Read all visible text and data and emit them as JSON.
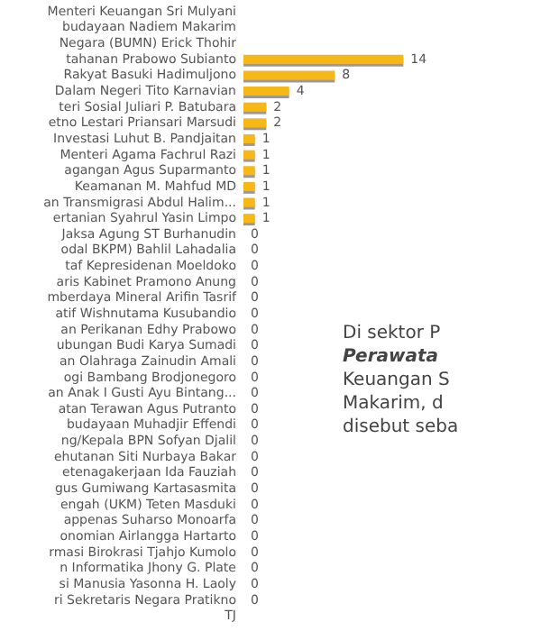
{
  "chart_data": {
    "type": "bar",
    "orientation": "horizontal",
    "color": "#f6b817",
    "data_labels": true,
    "tick_labels": "y",
    "categories": [
      "Menteri Keuangan Sri Mulyani",
      "budayaan Nadiem Makarim",
      "Negara (BUMN) Erick Thohir",
      "tahanan Prabowo Subianto",
      "Rakyat Basuki Hadimuljono",
      "Dalam Negeri Tito Karnavian",
      "teri Sosial Juliari P. Batubara",
      "etno Lestari Priansari Marsudi",
      "Investasi Luhut B. Pandjaitan",
      "Menteri Agama Fachrul Razi",
      "agangan Agus Suparmanto",
      "Keamanan M. Mahfud MD",
      "an Transmigrasi Abdul Halim...",
      "ertanian Syahrul Yasin Limpo",
      "Jaksa Agung ST Burhanudin",
      "odal BKPM) Bahlil Lahadalia",
      "taf Kepresidenan Moeldoko",
      "aris Kabinet Pramono Anung",
      "mberdaya Mineral Arifin Tasrif",
      "atif Wishnutama Kusubandio",
      "an Perikanan Edhy Prabowo",
      "ubungan Budi Karya Sumadi",
      "an Olahraga Zainudin Amali",
      "ogi Bambang Brodjonegoro",
      "an Anak I Gusti Ayu Bintang...",
      "atan Terawan Agus Putranto",
      "budayaan Muhadjir Effendi",
      "ng/Kepala BPN Sofyan Djalil",
      "ehutanan Siti Nurbaya Bakar",
      "etenagakerjaan Ida Fauziah",
      "gus Gumiwang Kartasasmita",
      "engah (UKM) Teten Masduki",
      "appenas Suharso Monoarfa",
      "onomian Airlangga Hartarto",
      "rmasi Birokrasi Tjahjo Kumolo",
      "n Informatika Jhony G. Plate",
      "si Manusia Yasonna H. Laoly",
      "ri Sekretaris Negara Pratikno",
      "TJ"
    ],
    "values": [
      null,
      null,
      null,
      14,
      8,
      4,
      2,
      2,
      1,
      1,
      1,
      1,
      1,
      1,
      0,
      0,
      0,
      0,
      0,
      0,
      0,
      0,
      0,
      0,
      0,
      0,
      0,
      0,
      0,
      0,
      0,
      0,
      0,
      0,
      0,
      0,
      0,
      0,
      null
    ],
    "annotations": [
      "Di sektor P",
      "Perawata",
      "Keuangan S",
      "Makarim, d",
      "disebut seba"
    ]
  }
}
